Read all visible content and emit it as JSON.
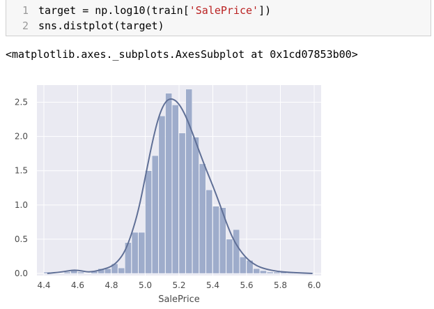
{
  "code_cell": {
    "lines": [
      {
        "number": "1",
        "parts": [
          "target = np.log10(train[",
          "'SalePrice'",
          "])"
        ]
      },
      {
        "number": "2",
        "parts": [
          "sns.distplot(target)"
        ]
      }
    ]
  },
  "output": {
    "text": "<matplotlib.axes._subplots.AxesSubplot at 0x1cd07853b00>"
  },
  "chart_data": {
    "type": "bar",
    "xlabel": "SalePrice",
    "ylabel": "",
    "xlim": [
      4.4,
      6.0
    ],
    "ylim": [
      0,
      2.75
    ],
    "x_ticks": [
      "4.4",
      "4.6",
      "4.8",
      "5.0",
      "5.2",
      "5.4",
      "5.6",
      "5.8",
      "6.0"
    ],
    "y_ticks": [
      "0.0",
      "0.5",
      "1.0",
      "1.5",
      "2.0",
      "2.5"
    ],
    "grid": true,
    "legend": "none",
    "bar_color": "#9aa9c9",
    "kde_color": "#5f6f96",
    "background": "#eaeaf2",
    "bins": [
      {
        "x0": 4.4,
        "x1": 4.44,
        "value": 0.02
      },
      {
        "x0": 4.44,
        "x1": 4.48,
        "value": 0.0
      },
      {
        "x0": 4.48,
        "x1": 4.52,
        "value": 0.0
      },
      {
        "x0": 4.52,
        "x1": 4.56,
        "value": 0.02
      },
      {
        "x0": 4.56,
        "x1": 4.6,
        "value": 0.05
      },
      {
        "x0": 4.6,
        "x1": 4.64,
        "value": 0.02
      },
      {
        "x0": 4.64,
        "x1": 4.68,
        "value": 0.0
      },
      {
        "x0": 4.68,
        "x1": 4.72,
        "value": 0.03
      },
      {
        "x0": 4.72,
        "x1": 4.76,
        "value": 0.07
      },
      {
        "x0": 4.76,
        "x1": 4.8,
        "value": 0.07
      },
      {
        "x0": 4.8,
        "x1": 4.84,
        "value": 0.14
      },
      {
        "x0": 4.84,
        "x1": 4.88,
        "value": 0.08
      },
      {
        "x0": 4.88,
        "x1": 4.92,
        "value": 0.45
      },
      {
        "x0": 4.92,
        "x1": 4.96,
        "value": 0.6
      },
      {
        "x0": 4.96,
        "x1": 5.0,
        "value": 0.6
      },
      {
        "x0": 5.0,
        "x1": 5.04,
        "value": 1.5
      },
      {
        "x0": 5.04,
        "x1": 5.08,
        "value": 1.72
      },
      {
        "x0": 5.08,
        "x1": 5.12,
        "value": 2.3
      },
      {
        "x0": 5.12,
        "x1": 5.16,
        "value": 2.63
      },
      {
        "x0": 5.16,
        "x1": 5.2,
        "value": 2.46
      },
      {
        "x0": 5.2,
        "x1": 5.24,
        "value": 2.05
      },
      {
        "x0": 5.24,
        "x1": 5.28,
        "value": 2.69
      },
      {
        "x0": 5.28,
        "x1": 5.32,
        "value": 1.99
      },
      {
        "x0": 5.32,
        "x1": 5.36,
        "value": 1.6
      },
      {
        "x0": 5.36,
        "x1": 5.4,
        "value": 1.22
      },
      {
        "x0": 5.4,
        "x1": 5.44,
        "value": 0.98
      },
      {
        "x0": 5.44,
        "x1": 5.48,
        "value": 0.96
      },
      {
        "x0": 5.48,
        "x1": 5.52,
        "value": 0.5
      },
      {
        "x0": 5.52,
        "x1": 5.56,
        "value": 0.64
      },
      {
        "x0": 5.56,
        "x1": 5.6,
        "value": 0.24
      },
      {
        "x0": 5.6,
        "x1": 5.64,
        "value": 0.19
      },
      {
        "x0": 5.64,
        "x1": 5.68,
        "value": 0.07
      },
      {
        "x0": 5.68,
        "x1": 5.72,
        "value": 0.04
      },
      {
        "x0": 5.72,
        "x1": 5.76,
        "value": 0.02
      },
      {
        "x0": 5.76,
        "x1": 5.8,
        "value": 0.02
      },
      {
        "x0": 5.8,
        "x1": 5.84,
        "value": 0.02
      },
      {
        "x0": 5.84,
        "x1": 5.88,
        "value": 0.01
      },
      {
        "x0": 5.88,
        "x1": 5.92,
        "value": 0.01
      },
      {
        "x0": 5.92,
        "x1": 5.96,
        "value": 0.0
      },
      {
        "x0": 5.96,
        "x1": 6.0,
        "value": 0.01
      }
    ],
    "kde": {
      "x": [
        4.42,
        4.5,
        4.55,
        4.58,
        4.62,
        4.66,
        4.7,
        4.75,
        4.8,
        4.84,
        4.88,
        4.92,
        4.96,
        5.0,
        5.04,
        5.08,
        5.12,
        5.16,
        5.2,
        5.24,
        5.28,
        5.32,
        5.36,
        5.4,
        5.44,
        5.48,
        5.52,
        5.56,
        5.6,
        5.64,
        5.68,
        5.72,
        5.78,
        5.85,
        5.92,
        5.99
      ],
      "y": [
        0.0,
        0.02,
        0.04,
        0.05,
        0.04,
        0.02,
        0.03,
        0.06,
        0.1,
        0.18,
        0.32,
        0.58,
        0.92,
        1.4,
        1.9,
        2.3,
        2.52,
        2.56,
        2.48,
        2.3,
        2.05,
        1.78,
        1.52,
        1.28,
        1.02,
        0.74,
        0.5,
        0.34,
        0.22,
        0.14,
        0.09,
        0.06,
        0.03,
        0.015,
        0.008,
        0.0
      ]
    }
  }
}
